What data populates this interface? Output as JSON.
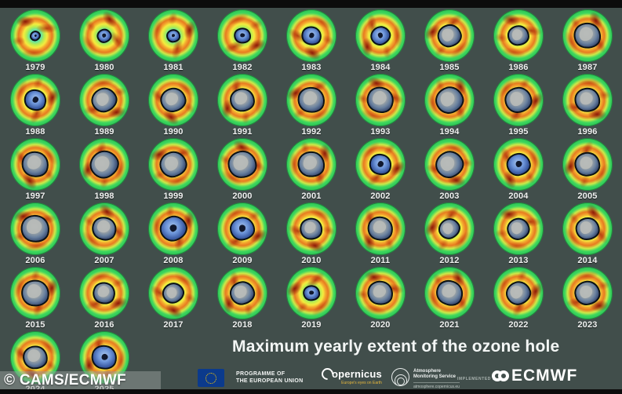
{
  "page": {
    "background_color": "#414e4b",
    "top_bar_color": "#0c0c0c",
    "bottom_bar_color": "#0c0c0c",
    "accent_green": "#3fd75e",
    "accent_red": "#a8250a",
    "hole_blue": "#5d87d4",
    "hole_gray": "#a8aeae"
  },
  "footer": {
    "title": "Maximum yearly extent of the ozone hole"
  },
  "watermark": {
    "text": "© CAMS/ECMWF"
  },
  "logos": {
    "eu": {
      "line1": "PROGRAMME OF",
      "line2": "THE EUROPEAN UNION"
    },
    "copernicus": {
      "name": "opernicus",
      "tagline": "Europe's eyes on Earth"
    },
    "ams": {
      "line1": "Atmosphere",
      "line2": "Monitoring Service",
      "url": "atmosphere.copernicus.eu"
    },
    "implemented_by": "IMPLEMENTED BY",
    "ecmwf": "ECMWF"
  },
  "grid": {
    "rows": [
      [
        {
          "year": "1979",
          "hole_scale": 0.22,
          "hole_tint": "blue"
        },
        {
          "year": "1980",
          "hole_scale": 0.3,
          "hole_tint": "blue"
        },
        {
          "year": "1981",
          "hole_scale": 0.28,
          "hole_tint": "blue"
        },
        {
          "year": "1982",
          "hole_scale": 0.34,
          "hole_tint": "blue"
        },
        {
          "year": "1983",
          "hole_scale": 0.4,
          "hole_tint": "blue"
        },
        {
          "year": "1984",
          "hole_scale": 0.4,
          "hole_tint": "blue"
        },
        {
          "year": "1985",
          "hole_scale": 0.48,
          "hole_tint": "gray"
        },
        {
          "year": "1986",
          "hole_scale": 0.44,
          "hole_tint": "gray"
        },
        {
          "year": "1987",
          "hole_scale": 0.55,
          "hole_tint": "gray"
        }
      ],
      [
        {
          "year": "1988",
          "hole_scale": 0.45,
          "hole_tint": "blue"
        },
        {
          "year": "1989",
          "hole_scale": 0.52,
          "hole_tint": "gray"
        },
        {
          "year": "1990",
          "hole_scale": 0.52,
          "hole_tint": "gray"
        },
        {
          "year": "1991",
          "hole_scale": 0.5,
          "hole_tint": "gray"
        },
        {
          "year": "1992",
          "hole_scale": 0.55,
          "hole_tint": "gray"
        },
        {
          "year": "1993",
          "hole_scale": 0.55,
          "hole_tint": "gray"
        },
        {
          "year": "1994",
          "hole_scale": 0.56,
          "hole_tint": "gray"
        },
        {
          "year": "1995",
          "hole_scale": 0.55,
          "hole_tint": "gray"
        },
        {
          "year": "1996",
          "hole_scale": 0.52,
          "hole_tint": "gray"
        }
      ],
      [
        {
          "year": "1997",
          "hole_scale": 0.55,
          "hole_tint": "gray"
        },
        {
          "year": "1998",
          "hole_scale": 0.58,
          "hole_tint": "gray"
        },
        {
          "year": "1999",
          "hole_scale": 0.55,
          "hole_tint": "gray"
        },
        {
          "year": "2000",
          "hole_scale": 0.58,
          "hole_tint": "gray"
        },
        {
          "year": "2001",
          "hole_scale": 0.55,
          "hole_tint": "gray"
        },
        {
          "year": "2002",
          "hole_scale": 0.45,
          "hole_tint": "blue"
        },
        {
          "year": "2003",
          "hole_scale": 0.56,
          "hole_tint": "gray"
        },
        {
          "year": "2004",
          "hole_scale": 0.48,
          "hole_tint": "blue"
        },
        {
          "year": "2005",
          "hole_scale": 0.52,
          "hole_tint": "gray"
        }
      ],
      [
        {
          "year": "2006",
          "hole_scale": 0.58,
          "hole_tint": "gray"
        },
        {
          "year": "2007",
          "hole_scale": 0.5,
          "hole_tint": "gray"
        },
        {
          "year": "2008",
          "hole_scale": 0.54,
          "hole_tint": "blue"
        },
        {
          "year": "2009",
          "hole_scale": 0.5,
          "hole_tint": "blue"
        },
        {
          "year": "2010",
          "hole_scale": 0.46,
          "hole_tint": "gray"
        },
        {
          "year": "2011",
          "hole_scale": 0.52,
          "hole_tint": "gray"
        },
        {
          "year": "2012",
          "hole_scale": 0.44,
          "hole_tint": "gray"
        },
        {
          "year": "2013",
          "hole_scale": 0.46,
          "hole_tint": "gray"
        },
        {
          "year": "2014",
          "hole_scale": 0.48,
          "hole_tint": "gray"
        }
      ],
      [
        {
          "year": "2015",
          "hole_scale": 0.56,
          "hole_tint": "gray"
        },
        {
          "year": "2016",
          "hole_scale": 0.46,
          "hole_tint": "gray"
        },
        {
          "year": "2017",
          "hole_scale": 0.44,
          "hole_tint": "gray"
        },
        {
          "year": "2018",
          "hole_scale": 0.5,
          "hole_tint": "gray"
        },
        {
          "year": "2019",
          "hole_scale": 0.34,
          "hole_tint": "blue"
        },
        {
          "year": "2020",
          "hole_scale": 0.52,
          "hole_tint": "gray"
        },
        {
          "year": "2021",
          "hole_scale": 0.54,
          "hole_tint": "gray"
        },
        {
          "year": "2022",
          "hole_scale": 0.5,
          "hole_tint": "gray"
        },
        {
          "year": "2023",
          "hole_scale": 0.52,
          "hole_tint": "gray"
        }
      ],
      [
        {
          "year": "2024",
          "hole_scale": 0.5,
          "hole_tint": "gray"
        },
        {
          "year": "2025",
          "hole_scale": 0.52,
          "hole_tint": "blue"
        }
      ]
    ]
  },
  "chart_data": {
    "type": "heatmap",
    "title": "Maximum yearly extent of the ozone hole",
    "layout": "small-multiples, polar ozone maps, 9 per row, 6 rows",
    "categories": [
      1979,
      1980,
      1981,
      1982,
      1983,
      1984,
      1985,
      1986,
      1987,
      1988,
      1989,
      1990,
      1991,
      1992,
      1993,
      1994,
      1995,
      1996,
      1997,
      1998,
      1999,
      2000,
      2001,
      2002,
      2003,
      2004,
      2005,
      2006,
      2007,
      2008,
      2009,
      2010,
      2011,
      2012,
      2013,
      2014,
      2015,
      2016,
      2017,
      2018,
      2019,
      2020,
      2021,
      2022,
      2023,
      2024,
      2025
    ],
    "series": [
      {
        "name": "relative ozone hole extent (estimated from panel, 0-1 of disc diameter)",
        "values": [
          0.22,
          0.3,
          0.28,
          0.34,
          0.4,
          0.4,
          0.48,
          0.44,
          0.55,
          0.45,
          0.52,
          0.52,
          0.5,
          0.55,
          0.55,
          0.56,
          0.55,
          0.52,
          0.55,
          0.58,
          0.55,
          0.58,
          0.55,
          0.45,
          0.56,
          0.48,
          0.52,
          0.58,
          0.5,
          0.54,
          0.5,
          0.46,
          0.52,
          0.44,
          0.46,
          0.48,
          0.56,
          0.46,
          0.44,
          0.5,
          0.34,
          0.52,
          0.54,
          0.5,
          0.52,
          0.5,
          0.52
        ],
        "color_scale": "rainbow: red/dark-red = low ozone ring, green/yellow = normal, blue/gray blob = ozone hole over Antarctica"
      }
    ],
    "legend": "none shown",
    "source_credit": "© CAMS/ECMWF"
  }
}
